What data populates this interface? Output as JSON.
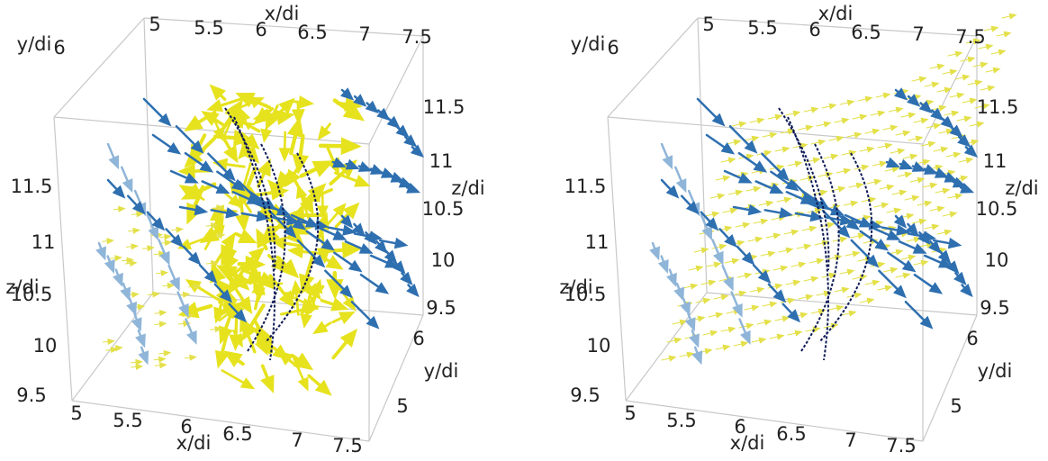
{
  "panels": [
    {
      "top_x_label": "x/di",
      "top_x_ticks": [
        5,
        5.5,
        6,
        6.5,
        7,
        7.5
      ],
      "bottom_x_label": "x/di",
      "bottom_x_ticks": [
        5,
        5.5,
        6,
        6.5,
        7,
        7.5
      ],
      "right_y_label": "y/di",
      "right_y_ticks": [
        5,
        6
      ],
      "corner_y_label": "y/di",
      "corner_y_tick": 6,
      "right_z_label": "z/di",
      "right_z_ticks": [
        9.5,
        10,
        10.5,
        11,
        11.5
      ],
      "left_z_label": "z/di",
      "left_z_ticks": [
        9.5,
        10,
        10.5,
        11,
        11.5
      ]
    },
    {
      "top_x_label": "x/di",
      "top_x_ticks": [
        5,
        5.5,
        6,
        6.5,
        7,
        7.5
      ],
      "bottom_x_label": "x/di",
      "bottom_x_ticks": [
        5,
        5.5,
        6,
        6.5,
        7,
        7.5
      ],
      "right_y_label": "y/di",
      "right_y_ticks": [
        5,
        6
      ],
      "corner_y_label": "y/di",
      "corner_y_tick": 6,
      "right_z_label": "z/di",
      "right_z_ticks": [
        9.5,
        10,
        10.5,
        11,
        11.5
      ],
      "left_z_label": "z/di",
      "left_z_ticks": [
        9.5,
        10,
        10.5,
        11,
        11.5
      ]
    }
  ]
}
